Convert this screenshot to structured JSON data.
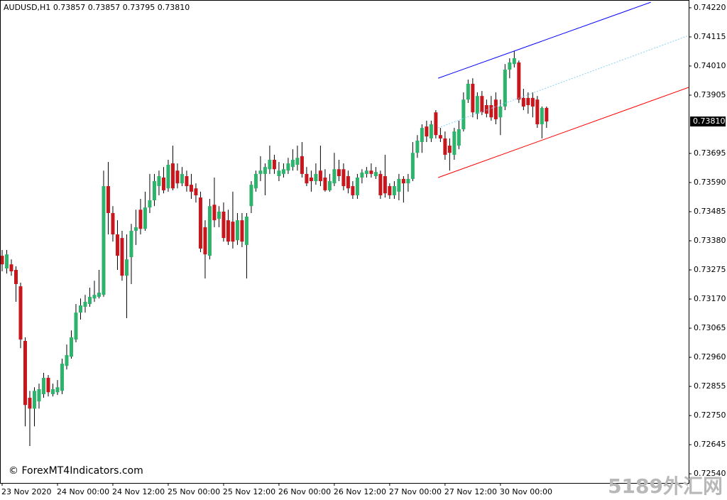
{
  "chart_data": {
    "type": "candlestick",
    "title": "AUDUSD,H1  0.73857 0.73857 0.73795 0.73810",
    "watermark": "© ForexMT4Indicators.com",
    "site_mark": "5189外汇网",
    "up_color": "#2db36b",
    "down_color": "#c8161d",
    "wick_color": "#000000",
    "categories": [
      "23 Nov 2020",
      null,
      null,
      null,
      null,
      null,
      null,
      null,
      null,
      null,
      null,
      null,
      "24 Nov 00:00",
      null,
      null,
      null,
      null,
      null,
      null,
      null,
      null,
      null,
      null,
      null,
      "24 Nov 12:00",
      null,
      null,
      null,
      null,
      null,
      null,
      null,
      null,
      null,
      null,
      null,
      "25 Nov 00:00",
      null,
      null,
      null,
      null,
      null,
      null,
      null,
      null,
      null,
      null,
      null,
      "25 Nov 12:00",
      null,
      null,
      null,
      null,
      null,
      null,
      null,
      null,
      null,
      null,
      null,
      "26 Nov 00:00",
      null,
      null,
      null,
      null,
      null,
      null,
      null,
      null,
      null,
      null,
      null,
      "26 Nov 12:00",
      null,
      null,
      null,
      null,
      null,
      null,
      null,
      null,
      null,
      null,
      null,
      "27 Nov 00:00",
      null,
      null,
      null,
      null,
      null,
      null,
      null,
      null,
      null,
      null,
      null,
      "27 Nov 12:00",
      null,
      null,
      null,
      null,
      null,
      null,
      null,
      null,
      null,
      null,
      null,
      "30 Nov 00:00",
      null,
      null,
      null,
      null,
      null,
      null,
      null,
      null,
      null,
      null
    ],
    "open": [
      0.73326,
      0.7328,
      0.73295,
      0.73275,
      0.73216,
      0.73019,
      0.72814,
      0.72775,
      0.72801,
      0.72827,
      0.72886,
      0.72827,
      0.72834,
      0.72839,
      0.72929,
      0.72962,
      0.73024,
      0.73121,
      0.73142,
      0.73152,
      0.73172,
      0.73178,
      0.73185,
      0.73577,
      0.7348,
      0.73403,
      0.7339,
      0.73254,
      0.73321,
      0.73416,
      0.73492,
      0.73423,
      0.735,
      0.73526,
      0.73577,
      0.73608,
      0.73569,
      0.73659,
      0.73633,
      0.73587,
      0.73613,
      0.73582,
      0.73569,
      0.73536,
      0.73429,
      0.73326,
      0.7351,
      0.73459,
      0.73485,
      0.73454,
      0.73449,
      0.73382,
      0.73454,
      0.73365,
      0.73505,
      0.73569,
      0.73621,
      0.73621,
      0.73638,
      0.73672,
      0.73613,
      0.73621,
      0.73633,
      0.73646,
      0.73654,
      0.73685,
      0.73621,
      0.73608,
      0.73595,
      0.73633,
      0.73608,
      0.73562,
      0.73587,
      0.73638,
      0.73638,
      0.73613,
      0.73577,
      0.73544,
      0.73608,
      0.73621,
      0.73633,
      0.73613,
      0.73621,
      0.73613,
      0.73577,
      0.73544,
      0.73557,
      0.73603,
      0.73587,
      0.73603,
      0.73697,
      0.73736,
      0.73792,
      0.73749,
      0.73843,
      0.73761,
      0.73749,
      0.73723,
      0.7369,
      0.73723,
      0.73782,
      0.73889,
      0.73946,
      0.73838,
      0.73902,
      0.73869,
      0.73869,
      0.73889,
      0.73825,
      0.73864,
      0.73997,
      0.74017,
      0.74023,
      0.73895,
      0.73895,
      0.73895,
      0.73889,
      0.738,
      0.73859
    ],
    "high": [
      0.73347,
      0.73347,
      0.73313,
      0.73288,
      0.73229,
      0.73032,
      0.72839,
      0.72852,
      0.72865,
      0.72904,
      0.72896,
      0.72865,
      0.72878,
      0.72955,
      0.73006,
      0.73057,
      0.73152,
      0.73172,
      0.73185,
      0.73211,
      0.73236,
      0.73275,
      0.73633,
      0.73664,
      0.73505,
      0.73454,
      0.73416,
      0.73403,
      0.73441,
      0.73492,
      0.73531,
      0.73557,
      0.73621,
      0.73621,
      0.73633,
      0.73646,
      0.73672,
      0.73723,
      0.73659,
      0.73646,
      0.73633,
      0.73621,
      0.73587,
      0.73557,
      0.73454,
      0.73531,
      0.73608,
      0.73505,
      0.73518,
      0.73492,
      0.73557,
      0.7348,
      0.7348,
      0.7348,
      0.73595,
      0.73633,
      0.73685,
      0.73659,
      0.73723,
      0.7369,
      0.73664,
      0.73659,
      0.73679,
      0.7371,
      0.73723,
      0.73736,
      0.73646,
      0.73633,
      0.73659,
      0.73723,
      0.73638,
      0.73621,
      0.73697,
      0.73672,
      0.73659,
      0.73633,
      0.73595,
      0.73621,
      0.73638,
      0.73646,
      0.73659,
      0.73646,
      0.73633,
      0.7369,
      0.73587,
      0.73595,
      0.73621,
      0.73613,
      0.73621,
      0.73736,
      0.73761,
      0.738,
      0.73813,
      0.73813,
      0.73851,
      0.73787,
      0.73774,
      0.73749,
      0.73787,
      0.73813,
      0.73915,
      0.73961,
      0.73966,
      0.73915,
      0.7392,
      0.73889,
      0.73902,
      0.73915,
      0.73889,
      0.74017,
      0.74038,
      0.74064,
      0.7403,
      0.73928,
      0.73915,
      0.73915,
      0.73902,
      0.73864,
      0.73864
    ],
    "low": [
      0.7327,
      0.73262,
      0.73254,
      0.7316,
      0.72993,
      0.72711,
      0.7264,
      0.72711,
      0.72775,
      0.72814,
      0.72819,
      0.72819,
      0.72824,
      0.72827,
      0.72916,
      0.72955,
      0.73014,
      0.73096,
      0.73121,
      0.73142,
      0.7316,
      0.73172,
      0.73178,
      0.73403,
      0.73377,
      0.73275,
      0.73236,
      0.73101,
      0.73224,
      0.73365,
      0.73403,
      0.73416,
      0.7348,
      0.73505,
      0.73544,
      0.73551,
      0.73557,
      0.73562,
      0.73569,
      0.73577,
      0.73557,
      0.73531,
      0.73518,
      0.73339,
      0.73244,
      0.73313,
      0.73429,
      0.73429,
      0.73377,
      0.73365,
      0.73352,
      0.73365,
      0.73357,
      0.73244,
      0.7348,
      0.73557,
      0.73595,
      0.73544,
      0.73621,
      0.73621,
      0.73595,
      0.73608,
      0.73621,
      0.73633,
      0.73633,
      0.73608,
      0.73577,
      0.73557,
      0.73582,
      0.73577,
      0.73557,
      0.73557,
      0.73577,
      0.73595,
      0.73562,
      0.73551,
      0.73531,
      0.73531,
      0.73587,
      0.73608,
      0.73608,
      0.73603,
      0.73531,
      0.73536,
      0.73531,
      0.73531,
      0.73526,
      0.73518,
      0.73557,
      0.73595,
      0.73679,
      0.73697,
      0.73736,
      0.73736,
      0.73749,
      0.73736,
      0.73672,
      0.73633,
      0.73672,
      0.7371,
      0.73774,
      0.73877,
      0.73825,
      0.73818,
      0.73833,
      0.73825,
      0.73813,
      0.738,
      0.73761,
      0.73851,
      0.73966,
      0.74005,
      0.73877,
      0.73851,
      0.73838,
      0.73825,
      0.73787,
      0.73749,
      0.73787
    ],
    "close": [
      0.73295,
      0.73331,
      0.7327,
      0.73224,
      0.73024,
      0.72788,
      0.72775,
      0.72839,
      0.72845,
      0.72886,
      0.72834,
      0.72845,
      0.72852,
      0.72937,
      0.72968,
      0.73032,
      0.73121,
      0.73147,
      0.7316,
      0.73178,
      0.73185,
      0.73193,
      0.73577,
      0.7348,
      0.73403,
      0.73326,
      0.73254,
      0.73313,
      0.73416,
      0.73429,
      0.73423,
      0.735,
      0.73526,
      0.73595,
      0.73613,
      0.73562,
      0.73654,
      0.73569,
      0.73587,
      0.73621,
      0.73577,
      0.73557,
      0.73544,
      0.73352,
      0.73331,
      0.73505,
      0.73454,
      0.73485,
      0.7339,
      0.73377,
      0.73377,
      0.73454,
      0.73377,
      0.73467,
      0.73582,
      0.73621,
      0.73633,
      0.73646,
      0.73672,
      0.73638,
      0.73633,
      0.73638,
      0.73659,
      0.73672,
      0.73679,
      0.73621,
      0.73587,
      0.73595,
      0.73621,
      0.73595,
      0.73562,
      0.73595,
      0.73638,
      0.73613,
      0.73577,
      0.73569,
      0.73544,
      0.73608,
      0.73626,
      0.73633,
      0.73621,
      0.73628,
      0.73544,
      0.73551,
      0.73544,
      0.73577,
      0.73603,
      0.73587,
      0.73603,
      0.73697,
      0.73741,
      0.73787,
      0.73756,
      0.738,
      0.73761,
      0.73749,
      0.7369,
      0.73697,
      0.73774,
      0.73782,
      0.73889,
      0.73946,
      0.73843,
      0.73902,
      0.73843,
      0.73838,
      0.73825,
      0.73818,
      0.73864,
      0.73997,
      0.74023,
      0.74038,
      0.73889,
      0.73864,
      0.73869,
      0.73864,
      0.738,
      0.73859,
      0.7381
    ],
    "last_price": {
      "value": 0.7381,
      "label": "0.73810"
    },
    "lines": [
      {
        "color": "#0000ff",
        "style": "solid",
        "x": [
          94.5,
          140.6
        ],
        "values": [
          0.73966,
          0.7424
        ]
      },
      {
        "color": "#87cefa",
        "style": "dotted",
        "x": [
          94.5,
          148.8
        ],
        "values": [
          0.73787,
          0.7412
        ]
      },
      {
        "color": "#ff0000",
        "style": "solid",
        "x": [
          94.5,
          148.8
        ],
        "values": [
          0.73608,
          0.73933
        ]
      }
    ],
    "xlim": [
      -0.46,
      148.8
    ],
    "ylim": [
      0.72507,
      0.74248
    ],
    "yticks": [
      {
        "value": 0.7422,
        "label": "0.74220"
      },
      0.74115,
      {
        "value": 0.7401,
        "label": "0.74010"
      },
      0.73905,
      0.73695,
      {
        "value": 0.7359,
        "label": "0.73590"
      },
      0.73485,
      {
        "value": 0.7338,
        "label": "0.73380"
      },
      0.73275,
      {
        "value": 0.7317,
        "label": "0.73170"
      },
      0.73065,
      {
        "value": 0.7296,
        "label": "0.72960"
      },
      0.72855,
      {
        "value": 0.7275,
        "label": "0.72750"
      },
      0.72645,
      {
        "value": 0.7254,
        "label": "0.72540"
      }
    ],
    "grid": false
  }
}
